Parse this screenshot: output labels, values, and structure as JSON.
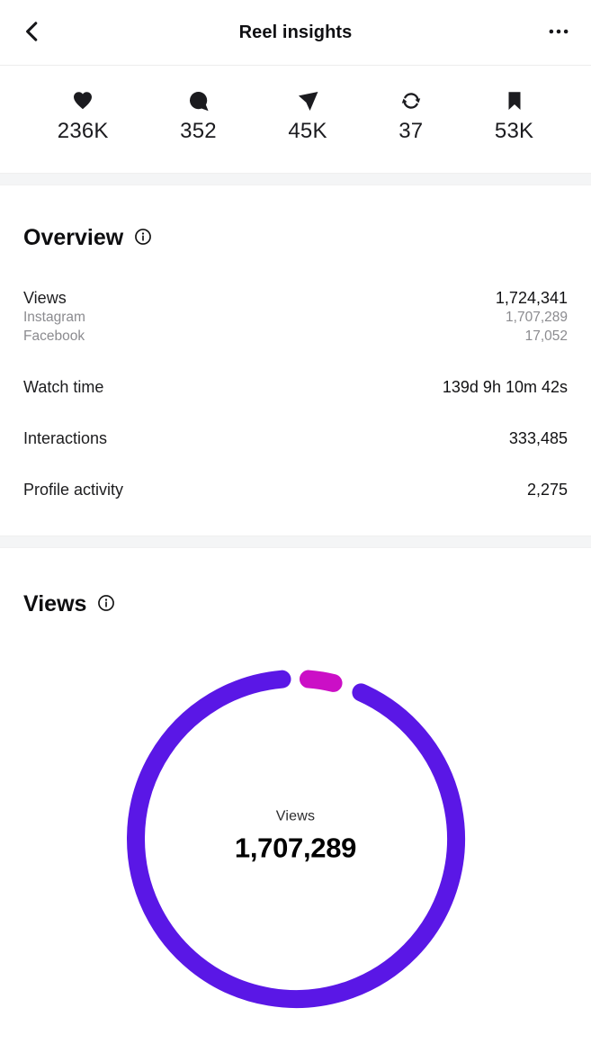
{
  "header": {
    "title": "Reel insights"
  },
  "engagement": {
    "items": [
      {
        "icon": "heart-icon",
        "metric": "likes",
        "value": "236K"
      },
      {
        "icon": "comment-icon",
        "metric": "comments",
        "value": "352"
      },
      {
        "icon": "share-icon",
        "metric": "shares",
        "value": "45K"
      },
      {
        "icon": "repost-icon",
        "metric": "reposts",
        "value": "37"
      },
      {
        "icon": "bookmark-icon",
        "metric": "saves",
        "value": "53K"
      }
    ]
  },
  "overview": {
    "heading": "Overview",
    "rows": [
      {
        "label": "Views",
        "value": "1,724,341",
        "sub": [
          {
            "label": "Instagram",
            "value": "1,707,289"
          },
          {
            "label": "Facebook",
            "value": "17,052"
          }
        ]
      },
      {
        "label": "Watch time",
        "value": "139d 9h 10m 42s"
      },
      {
        "label": "Interactions",
        "value": "333,485"
      },
      {
        "label": "Profile activity",
        "value": "2,275"
      }
    ]
  },
  "views_section": {
    "heading": "Views",
    "center_label": "Views",
    "center_value": "1,707,289"
  },
  "chart_data": {
    "type": "pie",
    "variant": "donut",
    "title": "Views",
    "center_label": "Views",
    "center_value": 1707289,
    "radius_px": 178,
    "stroke_px": 20,
    "segments": [
      {
        "name": "Instagram",
        "value": 1707289,
        "color": "#5a17e6",
        "start_deg": 24,
        "end_deg": 355
      },
      {
        "name": "Facebook",
        "value": 17052,
        "color": "#cb0fc6",
        "start_deg": 4.5,
        "end_deg": 13.5
      }
    ],
    "legend": "none"
  },
  "colors": {
    "primary_text": "#1c1c1e",
    "secondary_text": "#8b8b8f",
    "divider_band": "#f4f5f6",
    "donut_purple": "#5a17e6",
    "donut_magenta": "#cb0fc6"
  }
}
